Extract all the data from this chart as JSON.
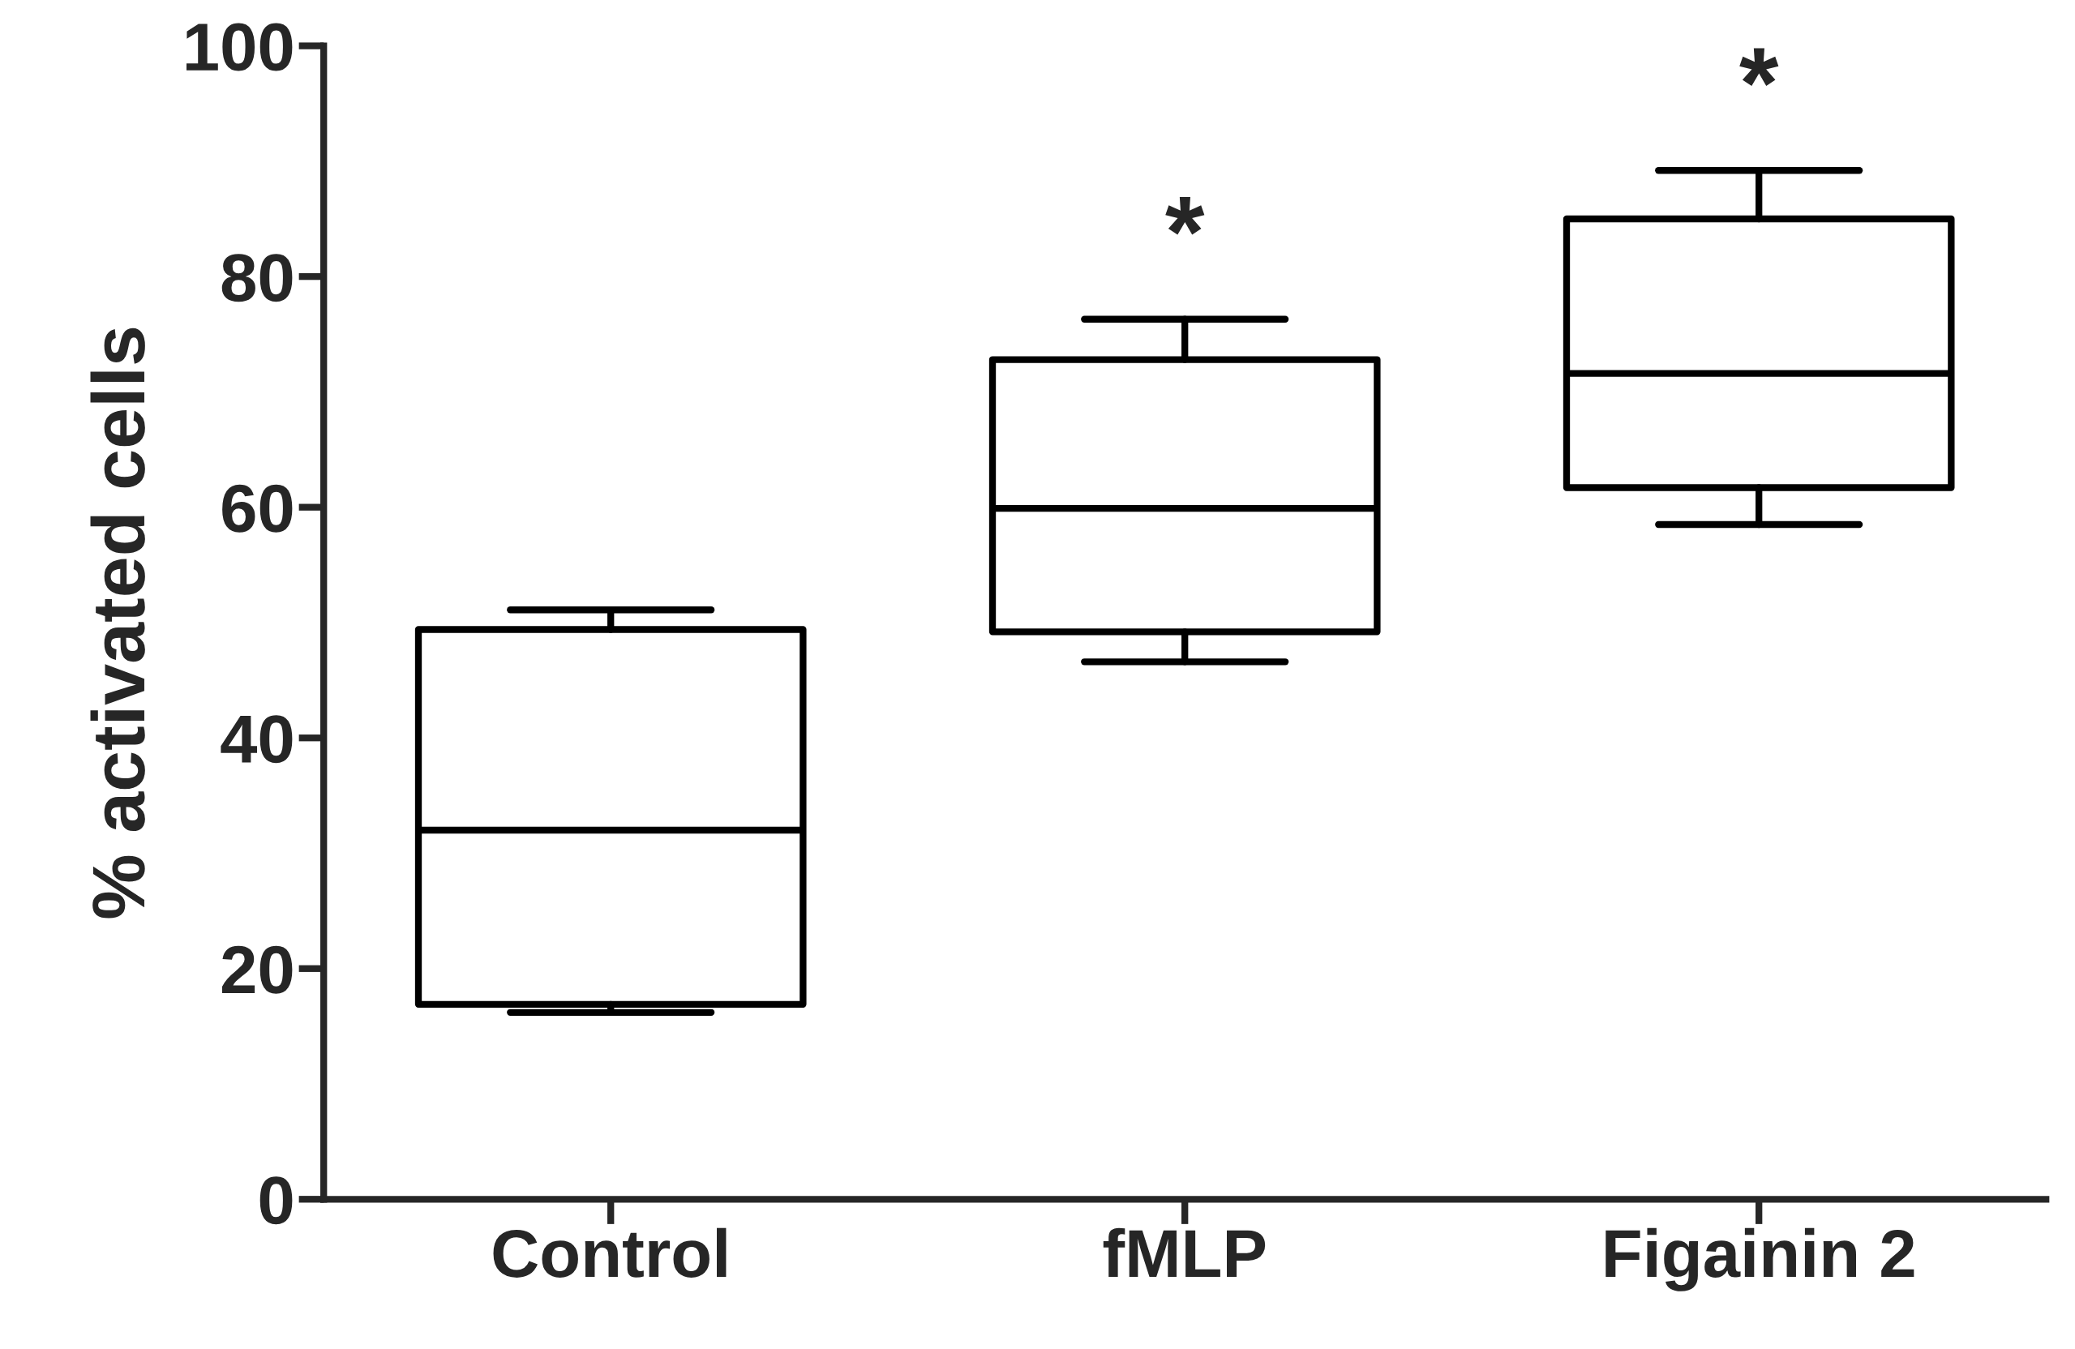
{
  "chart_data": {
    "type": "box",
    "ylabel": "% activated cells",
    "categories": [
      "Control",
      "fMLP",
      "Figainin 2"
    ],
    "boxes": [
      {
        "low": 16.2,
        "q1": 16.9,
        "median": 32.0,
        "q3": 49.4,
        "high": 51.1
      },
      {
        "low": 46.6,
        "q1": 49.2,
        "median": 59.9,
        "q3": 72.8,
        "high": 76.3
      },
      {
        "low": 58.5,
        "q1": 61.7,
        "median": 71.6,
        "q3": 85.0,
        "high": 89.2
      }
    ],
    "color": "#000000",
    "ylim": [
      0,
      100
    ],
    "yticks": [
      0,
      20,
      40,
      60,
      80,
      100
    ],
    "grid": false,
    "annotations": [
      "*",
      "*"
    ]
  }
}
